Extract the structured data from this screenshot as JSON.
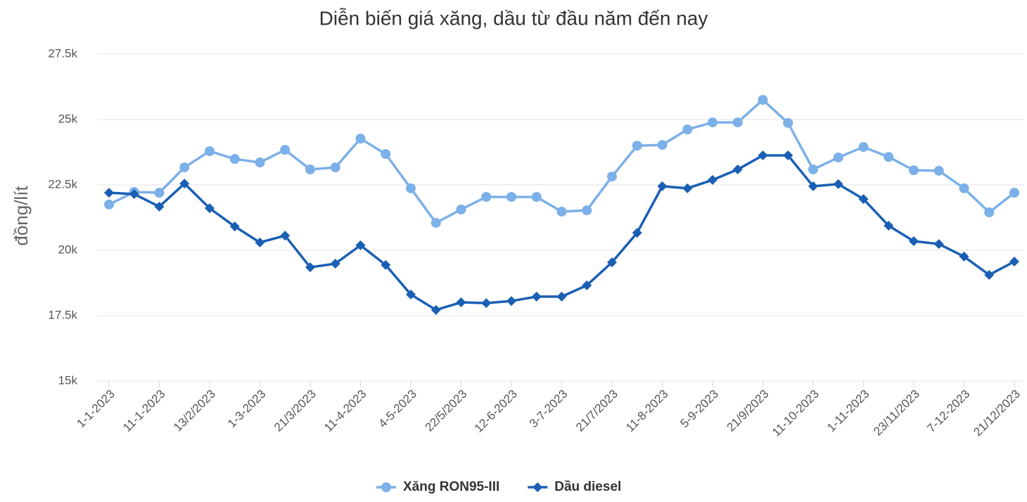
{
  "chart_data": {
    "type": "line",
    "title": "Diễn biến giá xăng, dầu từ đầu năm đến nay",
    "y_label": "đồng/lít",
    "categories": [
      "1-1-2023",
      null,
      "11-1-2023",
      null,
      "13/2/2023",
      null,
      "1-3-2023",
      null,
      "21/3/2023",
      null,
      "11-4-2023",
      null,
      "4-5-2023",
      null,
      "22/5/2023",
      null,
      "12-6-2023",
      null,
      "3-7-2023",
      null,
      "21/7/2023",
      null,
      "11-8-2023",
      null,
      "5-9-2023",
      null,
      "21/9/2023",
      null,
      "11-10-2023",
      null,
      "1-11-2023",
      null,
      "23/11/2023",
      null,
      "7-12-2023",
      null,
      "21/12/2023"
    ],
    "series": [
      {
        "name": "Xăng RON95-III",
        "color": "#7cb0e8",
        "marker": "circle",
        "values": [
          21750,
          22230,
          22200,
          23170,
          23790,
          23490,
          23360,
          23840,
          23090,
          23170,
          24270,
          23680,
          22370,
          21050,
          21560,
          22040,
          22040,
          22040,
          21480,
          21530,
          22820,
          24000,
          24030,
          24620,
          24890,
          24890,
          25750,
          24870,
          23090,
          23550,
          23950,
          23570,
          23060,
          23040,
          22370,
          21450,
          22200
        ]
      },
      {
        "name": "Dầu diesel",
        "color": "#1a5fb4",
        "marker": "diamond",
        "values": [
          22200,
          22150,
          21670,
          22550,
          21610,
          20910,
          20300,
          20560,
          19350,
          19490,
          20190,
          19440,
          18310,
          17720,
          18010,
          17980,
          18060,
          18230,
          18230,
          18660,
          19540,
          20670,
          22450,
          22370,
          22690,
          23090,
          23630,
          23630,
          22450,
          22530,
          21960,
          20940,
          20350,
          20240,
          19760,
          19060,
          19570
        ]
      }
    ],
    "ylim": [
      15000,
      27500
    ],
    "yticks": [
      {
        "value": 15000,
        "label": "15k"
      },
      {
        "value": 17500,
        "label": "17.5k"
      },
      {
        "value": 20000,
        "label": "20k"
      },
      {
        "value": 22500,
        "label": "22.5k"
      },
      {
        "value": 25000,
        "label": "25k"
      },
      {
        "value": 27500,
        "label": "27.5k"
      }
    ],
    "grid": true,
    "legend": "bottom"
  }
}
